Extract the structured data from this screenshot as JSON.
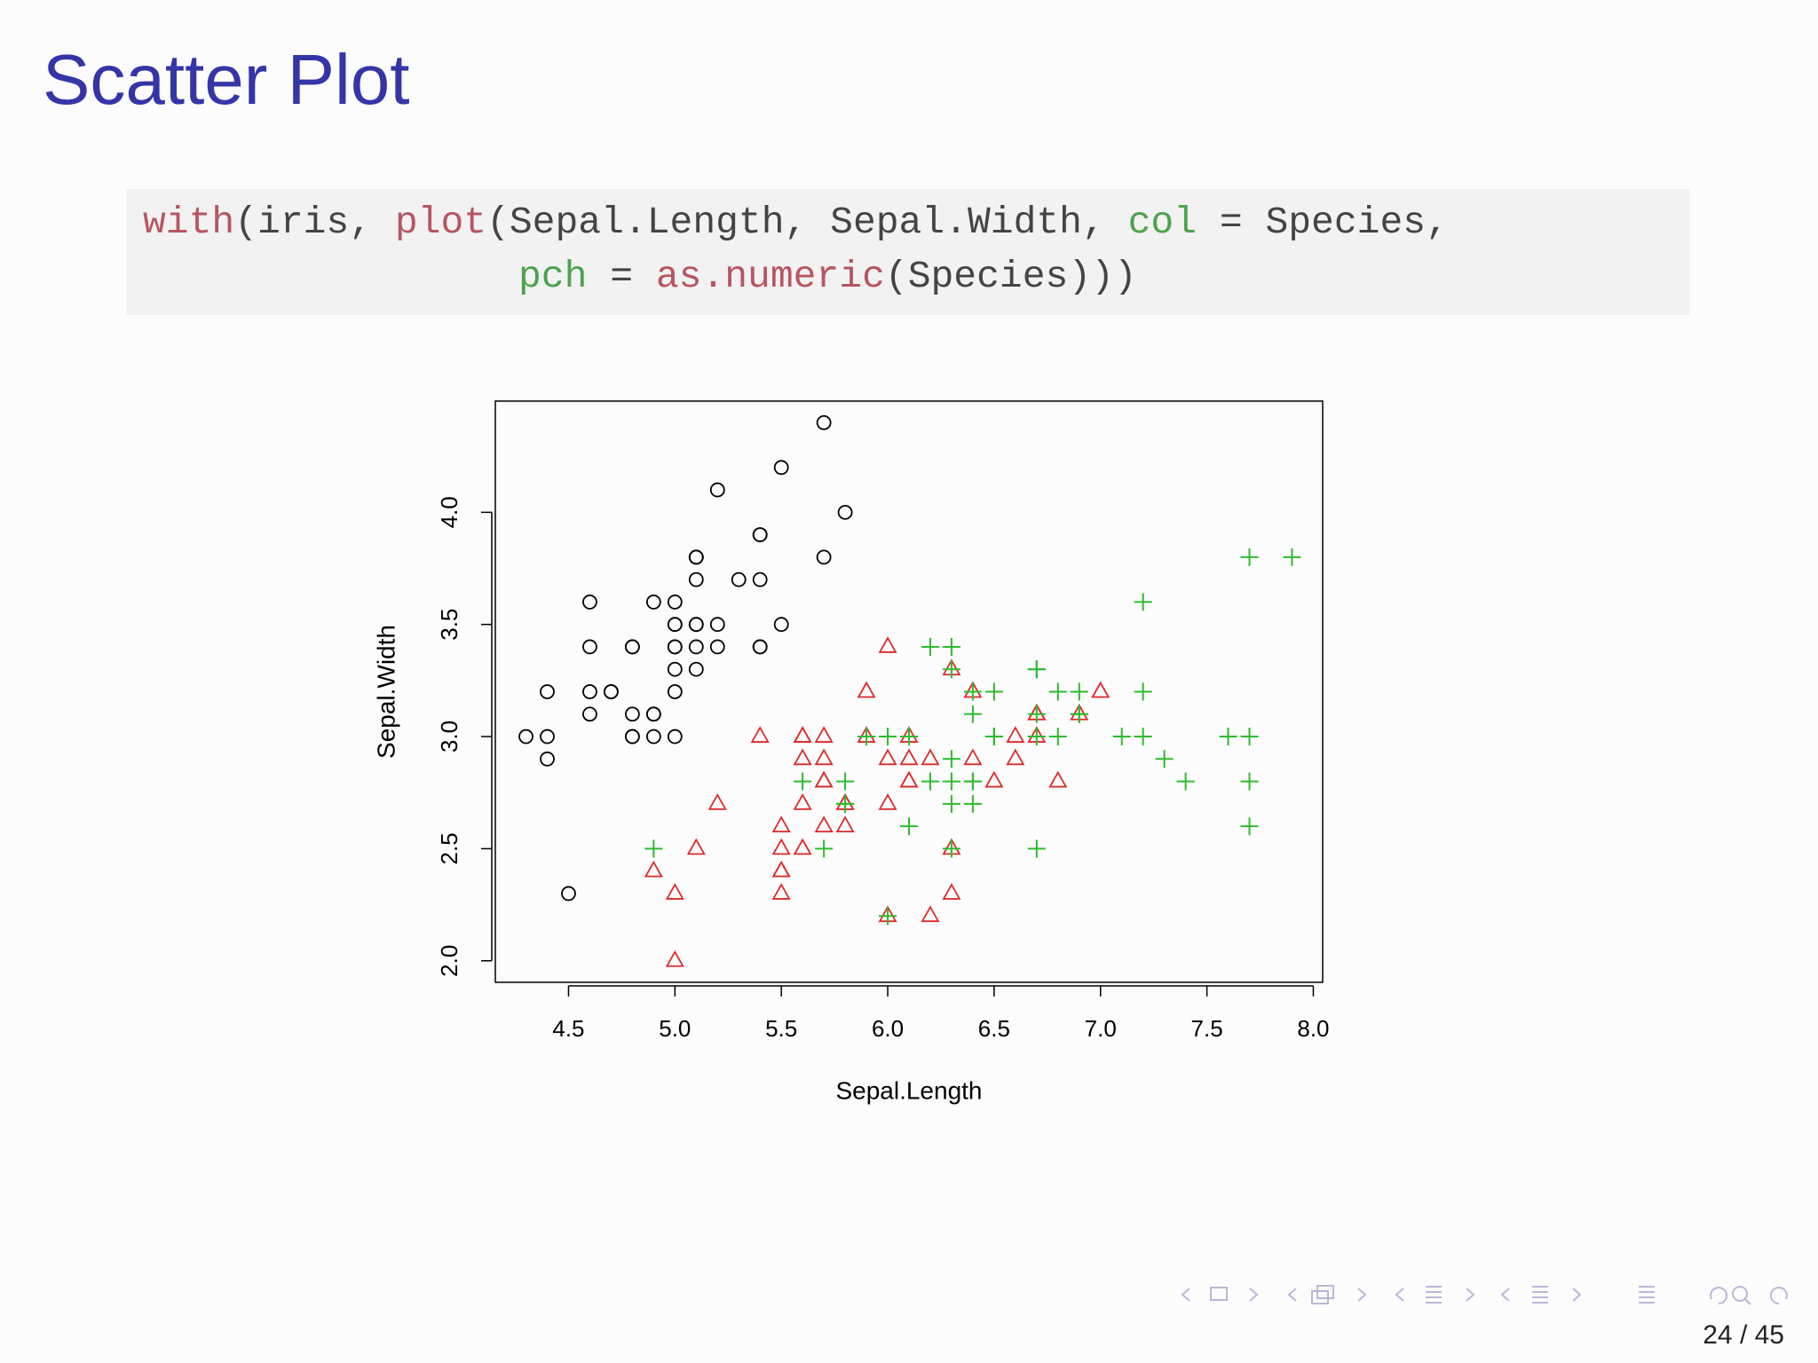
{
  "slide": {
    "title": "Scatter Plot",
    "code": [
      [
        {
          "text": "with",
          "color": "#b85562"
        },
        {
          "text": "(iris, ",
          "color": "#444444"
        },
        {
          "text": "plot",
          "color": "#b85562"
        },
        {
          "text": "(Sepal.Length, Sepal.Width, ",
          "color": "#444444"
        },
        {
          "text": "col",
          "color": "#4ea24e"
        },
        {
          "text": " = Species,",
          "color": "#444444"
        }
      ],
      [
        {
          "text": "pch",
          "color": "#4ea24e"
        },
        {
          "text": " = ",
          "color": "#444444"
        },
        {
          "text": "as.numeric",
          "color": "#b85562"
        },
        {
          "text": "(Species)))",
          "color": "#444444"
        }
      ]
    ],
    "page_number": "24 / 45"
  },
  "chart_data": {
    "type": "scatter",
    "xlabel": "Sepal.Length",
    "ylabel": "Sepal.Width",
    "xlim": [
      4.156,
      8.044
    ],
    "ylim": [
      1.904,
      4.496
    ],
    "xticks": [
      4.5,
      {
        "value": 5,
        "label": "5.0"
      },
      5.5,
      {
        "value": 6,
        "label": "6.0"
      },
      6.5,
      {
        "value": 7,
        "label": "7.0"
      },
      7.5,
      {
        "value": 8,
        "label": "8.0"
      }
    ],
    "yticks": [
      {
        "value": 2,
        "label": "2.0"
      },
      2.5,
      {
        "value": 3,
        "label": "3.0"
      },
      3.5,
      {
        "value": 4,
        "label": "4.0"
      }
    ],
    "series": [
      {
        "color": "#000000",
        "marker": "circle",
        "x": [
          5.1,
          4.9,
          4.7,
          4.6,
          5.0,
          5.4,
          4.6,
          5.0,
          4.4,
          4.9,
          5.4,
          4.8,
          4.8,
          4.3,
          5.8,
          5.7,
          5.4,
          5.1,
          5.7,
          5.1,
          5.4,
          5.1,
          4.6,
          5.1,
          4.8,
          5.0,
          5.0,
          5.2,
          5.2,
          4.7,
          4.8,
          5.4,
          5.2,
          5.5,
          4.9,
          5.0,
          5.5,
          4.9,
          4.4,
          5.1,
          5.0,
          4.5,
          4.4,
          5.0,
          5.1,
          4.8,
          5.1,
          4.6,
          5.3,
          5.0
        ],
        "y": [
          3.5,
          3.0,
          3.2,
          3.1,
          3.6,
          3.9,
          3.4,
          3.4,
          2.9,
          3.1,
          3.7,
          3.4,
          3.0,
          3.0,
          4.0,
          4.4,
          3.9,
          3.5,
          3.8,
          3.8,
          3.4,
          3.7,
          3.6,
          3.3,
          3.4,
          3.0,
          3.4,
          3.5,
          3.4,
          3.2,
          3.1,
          3.4,
          4.1,
          4.2,
          3.1,
          3.2,
          3.5,
          3.6,
          3.0,
          3.4,
          3.5,
          2.3,
          3.2,
          3.5,
          3.8,
          3.0,
          3.8,
          3.2,
          3.7,
          3.3
        ]
      },
      {
        "color": "#dd2a2a",
        "marker": "triangle",
        "x": [
          7.0,
          6.4,
          6.9,
          5.5,
          6.5,
          5.7,
          6.3,
          4.9,
          6.6,
          5.2,
          5.0,
          5.9,
          6.0,
          6.1,
          5.6,
          6.7,
          5.6,
          5.8,
          6.2,
          5.6,
          5.9,
          6.1,
          6.3,
          6.1,
          6.4,
          6.6,
          6.8,
          6.7,
          6.0,
          5.7,
          5.5,
          5.5,
          5.8,
          6.0,
          5.4,
          6.0,
          6.7,
          6.3,
          5.6,
          5.5,
          5.5,
          6.1,
          5.8,
          5.0,
          5.6,
          5.7,
          5.7,
          6.2,
          5.1,
          5.7
        ],
        "y": [
          3.2,
          3.2,
          3.1,
          2.3,
          2.8,
          2.8,
          3.3,
          2.4,
          2.9,
          2.7,
          2.0,
          3.0,
          2.2,
          2.9,
          2.9,
          3.1,
          3.0,
          2.7,
          2.2,
          2.5,
          3.2,
          2.8,
          2.5,
          2.8,
          2.9,
          3.0,
          2.8,
          3.0,
          2.9,
          2.6,
          2.4,
          2.4,
          2.7,
          2.7,
          3.0,
          3.4,
          3.1,
          2.3,
          3.0,
          2.5,
          2.6,
          3.0,
          2.6,
          2.3,
          2.7,
          3.0,
          2.9,
          2.9,
          2.5,
          2.8
        ]
      },
      {
        "color": "#2dbb2d",
        "marker": "plus",
        "x": [
          6.3,
          5.8,
          7.1,
          6.3,
          6.5,
          7.6,
          4.9,
          7.3,
          6.7,
          7.2,
          6.5,
          6.4,
          6.8,
          5.7,
          5.8,
          6.4,
          6.5,
          7.7,
          7.7,
          6.0,
          6.9,
          5.6,
          7.7,
          6.3,
          6.7,
          7.2,
          6.2,
          6.1,
          6.4,
          7.2,
          7.4,
          7.9,
          6.4,
          6.3,
          6.1,
          7.7,
          6.3,
          6.4,
          6.0,
          6.9,
          6.7,
          6.9,
          5.8,
          6.8,
          6.7,
          6.7,
          6.3,
          6.5,
          6.2,
          5.9
        ],
        "y": [
          3.3,
          2.7,
          3.0,
          2.9,
          3.0,
          3.0,
          2.5,
          2.9,
          2.5,
          3.6,
          3.2,
          2.7,
          3.0,
          2.5,
          2.8,
          3.2,
          3.0,
          3.8,
          2.6,
          2.2,
          3.2,
          2.8,
          2.8,
          2.7,
          3.3,
          3.2,
          2.8,
          3.0,
          2.8,
          3.0,
          2.8,
          3.8,
          2.8,
          2.8,
          2.6,
          3.0,
          3.4,
          3.1,
          3.0,
          3.1,
          3.1,
          3.1,
          2.7,
          3.2,
          3.3,
          3.0,
          2.5,
          3.0,
          3.4,
          3.0
        ]
      }
    ]
  }
}
